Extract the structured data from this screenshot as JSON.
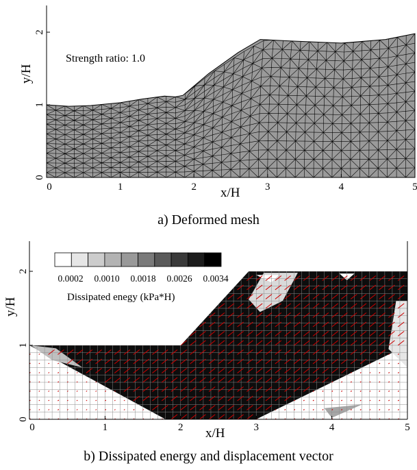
{
  "panel_a": {
    "annotation": "Strength ratio: 1.0",
    "xlabel": "x/H",
    "ylabel": "y/H",
    "x_ticks": [
      "0",
      "1",
      "2",
      "3",
      "4",
      "5"
    ],
    "y_ticks": [
      "0",
      "1",
      "2"
    ],
    "caption": "a) Deformed mesh",
    "colors": {
      "mesh_fill": "#9a9a9a",
      "mesh_line": "#000000"
    }
  },
  "panel_b": {
    "xlabel": "x/H",
    "ylabel": "y/H",
    "x_ticks": [
      "0",
      "1",
      "2",
      "3",
      "4",
      "5"
    ],
    "y_ticks": [
      "0",
      "1",
      "2"
    ],
    "legend_title": "Dissipated enegy (kPa*H)",
    "legend_ticks": [
      "0.0002",
      "0.0010",
      "0.0018",
      "0.0026",
      "0.0034"
    ],
    "legend_colors": [
      "#ffffff",
      "#e6e6e6",
      "#cccccc",
      "#b3b3b3",
      "#999999",
      "#7a7a7a",
      "#5a5a5a",
      "#3a3a3a",
      "#1c1c1c",
      "#000000"
    ],
    "caption": "b) Dissipated energy and displacement vector",
    "colors": {
      "vector": "#cc0000",
      "field": "#0d0d0d",
      "mesh_line": "#8a8a8a"
    }
  },
  "chart_data": [
    {
      "type": "other",
      "title": "",
      "xlabel": "x/H",
      "ylabel": "y/H",
      "xlim": [
        0,
        5
      ],
      "ylim": [
        0,
        2.35
      ],
      "surface_profile": {
        "x": [
          0,
          0.3,
          0.6,
          1.0,
          1.3,
          1.6,
          1.75,
          1.85,
          2.2,
          2.6,
          2.9,
          3.3,
          4.0,
          4.6,
          5.0
        ],
        "y": [
          1.0,
          0.98,
          0.99,
          1.03,
          1.08,
          1.12,
          1.11,
          1.13,
          1.43,
          1.72,
          1.9,
          1.88,
          1.85,
          1.9,
          1.98
        ]
      }
    },
    {
      "type": "other",
      "title": "",
      "xlabel": "x/H",
      "ylabel": "y/H",
      "xlim": [
        0,
        5
      ],
      "ylim": [
        0,
        2.35
      ],
      "legend_range": [
        0.0002,
        0.0034
      ],
      "slope_outline": {
        "x": [
          0,
          2.0,
          2.9,
          5.0
        ],
        "y": [
          1.0,
          1.0,
          2.0,
          2.0
        ]
      }
    }
  ]
}
